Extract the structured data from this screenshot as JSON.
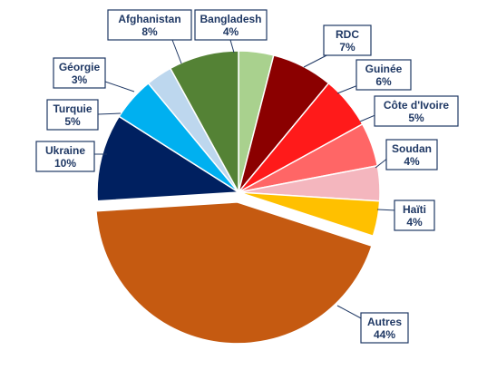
{
  "chart_data": {
    "type": "pie",
    "start_angle_deg": 90,
    "direction": "clockwise",
    "slices": [
      {
        "label": "Bangladesh",
        "value": 4,
        "display": "4%",
        "color": "#a9d18e",
        "exploded": false
      },
      {
        "label": "RDC",
        "value": 7,
        "display": "7%",
        "color": "#8b0000",
        "exploded": false
      },
      {
        "label": "Guinée",
        "value": 6,
        "display": "6%",
        "color": "#ff1a1a",
        "exploded": false
      },
      {
        "label": "Côte d'Ivoire",
        "value": 5,
        "display": "5%",
        "color": "#ff6666",
        "exploded": false
      },
      {
        "label": "Soudan",
        "value": 4,
        "display": "4%",
        "color": "#f4b6be",
        "exploded": false
      },
      {
        "label": "Haïti",
        "value": 4,
        "display": "4%",
        "color": "#ffc000",
        "exploded": false
      },
      {
        "label": "Autres",
        "value": 44,
        "display": "44%",
        "color": "#c55a11",
        "exploded": true
      },
      {
        "label": "Ukraine",
        "value": 10,
        "display": "10%",
        "color": "#002060",
        "exploded": false
      },
      {
        "label": "Turquie",
        "value": 5,
        "display": "5%",
        "color": "#00b0f0",
        "exploded": false
      },
      {
        "label": "Géorgie",
        "value": 3,
        "display": "3%",
        "color": "#bdd7ee",
        "exploded": false
      },
      {
        "label": "Afghanistan",
        "value": 8,
        "display": "8%",
        "color": "#548235",
        "exploded": false
      }
    ],
    "label_style": {
      "border": "#1f3864",
      "text": "#1f3864",
      "background": "#ffffff"
    }
  }
}
